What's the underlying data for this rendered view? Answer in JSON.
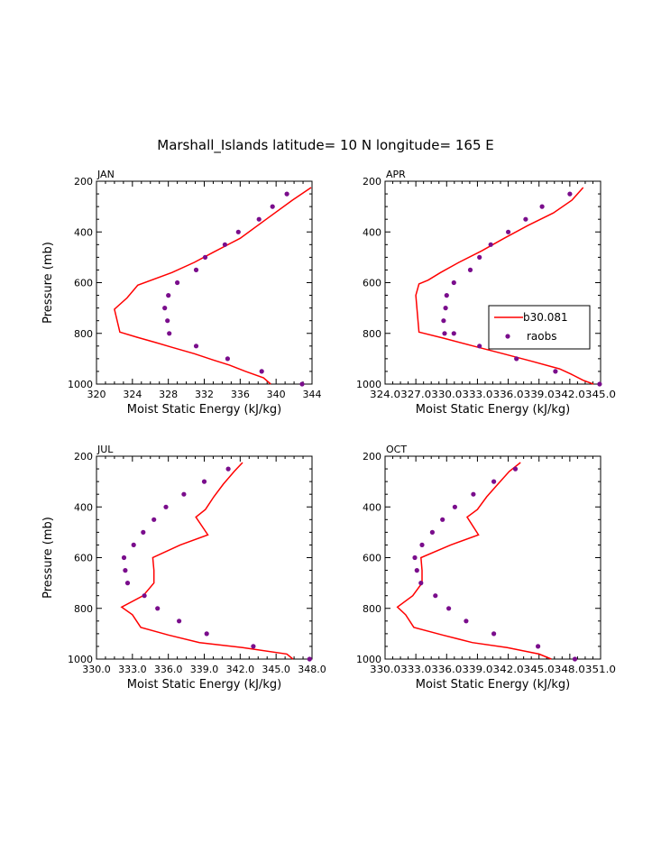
{
  "title": "Marshall_Islands   latitude= 10 N longitude= 165 E",
  "legend": {
    "model_label": "b30.081",
    "obs_label": "raobs",
    "placement": "APR panel, lower-right"
  },
  "colors": {
    "model_line": "#ff0000",
    "obs_points": "#7a0d8c",
    "axes": "#000000"
  },
  "chart_data": [
    {
      "type": "line",
      "panel": "JAN",
      "xlabel": "Moist Static Energy (kJ/kg)",
      "ylabel": "Pressure (mb)",
      "xlim": [
        320,
        344
      ],
      "ylim": [
        1000,
        200
      ],
      "xticks": [
        "320",
        "324",
        "328",
        "332",
        "336",
        "340",
        "344"
      ],
      "yticks": [
        "200",
        "400",
        "600",
        "800",
        "1000"
      ],
      "legend": false,
      "series": [
        {
          "name": "b30.081",
          "kind": "line",
          "x": [
            343.9,
            341.8,
            338.9,
            336.0,
            333.0,
            330.9,
            328.4,
            324.6,
            323.4,
            322.0,
            322.6,
            324.5,
            326.5,
            328.4,
            330.9,
            333.0,
            334.8,
            336.6,
            338.6,
            339.4
          ],
          "y": [
            225,
            275,
            350,
            425,
            480,
            520,
            560,
            610,
            660,
            705,
            795,
            815,
            835,
            855,
            880,
            905,
            925,
            950,
            975,
            1000
          ]
        },
        {
          "name": "raobs",
          "kind": "scatter",
          "x": [
            341.2,
            339.6,
            338.1,
            335.8,
            334.3,
            332.1,
            331.1,
            329.0,
            328.0,
            327.6,
            327.9,
            328.1,
            331.1,
            334.6,
            338.4,
            342.9
          ],
          "y": [
            250,
            300,
            350,
            400,
            450,
            500,
            550,
            600,
            650,
            700,
            750,
            800,
            850,
            900,
            950,
            1000
          ]
        }
      ]
    },
    {
      "type": "line",
      "panel": "APR",
      "xlabel": "Moist Static Energy (kJ/kg)",
      "ylabel": "",
      "xlim": [
        324.0,
        345.0
      ],
      "ylim": [
        1000,
        200
      ],
      "xticks": [
        "324.0",
        "327.0",
        "330.0",
        "333.0",
        "336.0",
        "339.0",
        "342.0",
        "345.0"
      ],
      "xtick_labels_printed": "324.0327.0330.0333.0336.0339.0342.0345.0",
      "yticks": [
        "200",
        "400",
        "600",
        "800",
        "1000"
      ],
      "legend": true,
      "series": [
        {
          "name": "b30.081",
          "kind": "line",
          "x": [
            343.3,
            342.2,
            340.4,
            337.9,
            335.6,
            333.4,
            331.2,
            329.4,
            328.2,
            327.3,
            327.0,
            327.1,
            327.3,
            329.8,
            332.6,
            335.5,
            338.3,
            341.0,
            342.1,
            343.3,
            344.3
          ],
          "y": [
            225,
            275,
            325,
            375,
            425,
            475,
            520,
            560,
            590,
            605,
            650,
            700,
            795,
            820,
            850,
            880,
            910,
            940,
            960,
            985,
            1000
          ]
        },
        {
          "name": "raobs",
          "kind": "scatter",
          "x": [
            342.0,
            339.3,
            337.7,
            336.0,
            334.3,
            333.2,
            332.3,
            330.7,
            330.0,
            329.9,
            329.7,
            329.8,
            330.7,
            333.2,
            336.8,
            340.6,
            344.9
          ],
          "y": [
            250,
            300,
            350,
            400,
            450,
            500,
            550,
            600,
            650,
            700,
            750,
            800,
            800,
            850,
            900,
            950,
            1000
          ]
        }
      ]
    },
    {
      "type": "line",
      "panel": "JUL",
      "xlabel": "Moist Static Energy (kJ/kg)",
      "ylabel": "Pressure (mb)",
      "xlim": [
        330.0,
        348.0
      ],
      "ylim": [
        1000,
        200
      ],
      "xticks": [
        "330.0",
        "333.0",
        "336.0",
        "339.0",
        "342.0",
        "345.0",
        "348.0"
      ],
      "yticks": [
        "200",
        "400",
        "600",
        "800",
        "1000"
      ],
      "legend": false,
      "series": [
        {
          "name": "b30.081",
          "kind": "line",
          "x": [
            342.2,
            341.5,
            340.6,
            339.8,
            339.1,
            338.3,
            339.3,
            337.0,
            334.7,
            334.8,
            334.8,
            333.9,
            332.1,
            333.0,
            333.7,
            336.0,
            338.6,
            342.2,
            345.9,
            346.4
          ],
          "y": [
            225,
            260,
            310,
            360,
            410,
            440,
            510,
            550,
            600,
            650,
            700,
            750,
            795,
            825,
            875,
            905,
            935,
            955,
            980,
            1000
          ]
        },
        {
          "name": "raobs",
          "kind": "scatter",
          "x": [
            341.0,
            339.0,
            337.3,
            335.8,
            334.8,
            333.9,
            333.1,
            332.3,
            332.4,
            332.6,
            334.0,
            335.1,
            336.9,
            339.2,
            343.1,
            347.8
          ],
          "y": [
            250,
            300,
            350,
            400,
            450,
            500,
            550,
            600,
            650,
            700,
            750,
            800,
            850,
            900,
            950,
            1000
          ]
        }
      ]
    },
    {
      "type": "line",
      "panel": "OCT",
      "xlabel": "Moist Static Energy (kJ/kg)",
      "ylabel": "",
      "xlim": [
        330.0,
        351.0
      ],
      "ylim": [
        1000,
        200
      ],
      "xticks": [
        "330.0",
        "333.0",
        "336.0",
        "339.0",
        "342.0",
        "345.0",
        "348.0",
        "351.0"
      ],
      "xtick_labels_printed": "330.0333.0336.0339.0342.0345.0348.0351.0",
      "yticks": [
        "200",
        "400",
        "600",
        "800",
        "1000"
      ],
      "legend": false,
      "series": [
        {
          "name": "b30.081",
          "kind": "line",
          "x": [
            343.2,
            342.1,
            341.0,
            339.9,
            339.0,
            338.0,
            339.1,
            336.4,
            333.5,
            333.6,
            333.6,
            332.7,
            331.2,
            332.0,
            332.8,
            335.6,
            338.5,
            341.9,
            345.0,
            346.2
          ],
          "y": [
            225,
            260,
            310,
            360,
            410,
            440,
            510,
            550,
            600,
            650,
            700,
            750,
            795,
            825,
            875,
            905,
            935,
            955,
            980,
            1000
          ]
        },
        {
          "name": "raobs",
          "kind": "scatter",
          "x": [
            342.7,
            340.6,
            338.6,
            336.8,
            335.6,
            334.6,
            333.6,
            332.9,
            333.1,
            333.5,
            334.9,
            336.2,
            337.9,
            340.6,
            344.9,
            348.5
          ],
          "y": [
            250,
            300,
            350,
            400,
            450,
            500,
            550,
            600,
            650,
            700,
            750,
            800,
            850,
            900,
            950,
            1000
          ]
        }
      ]
    }
  ]
}
